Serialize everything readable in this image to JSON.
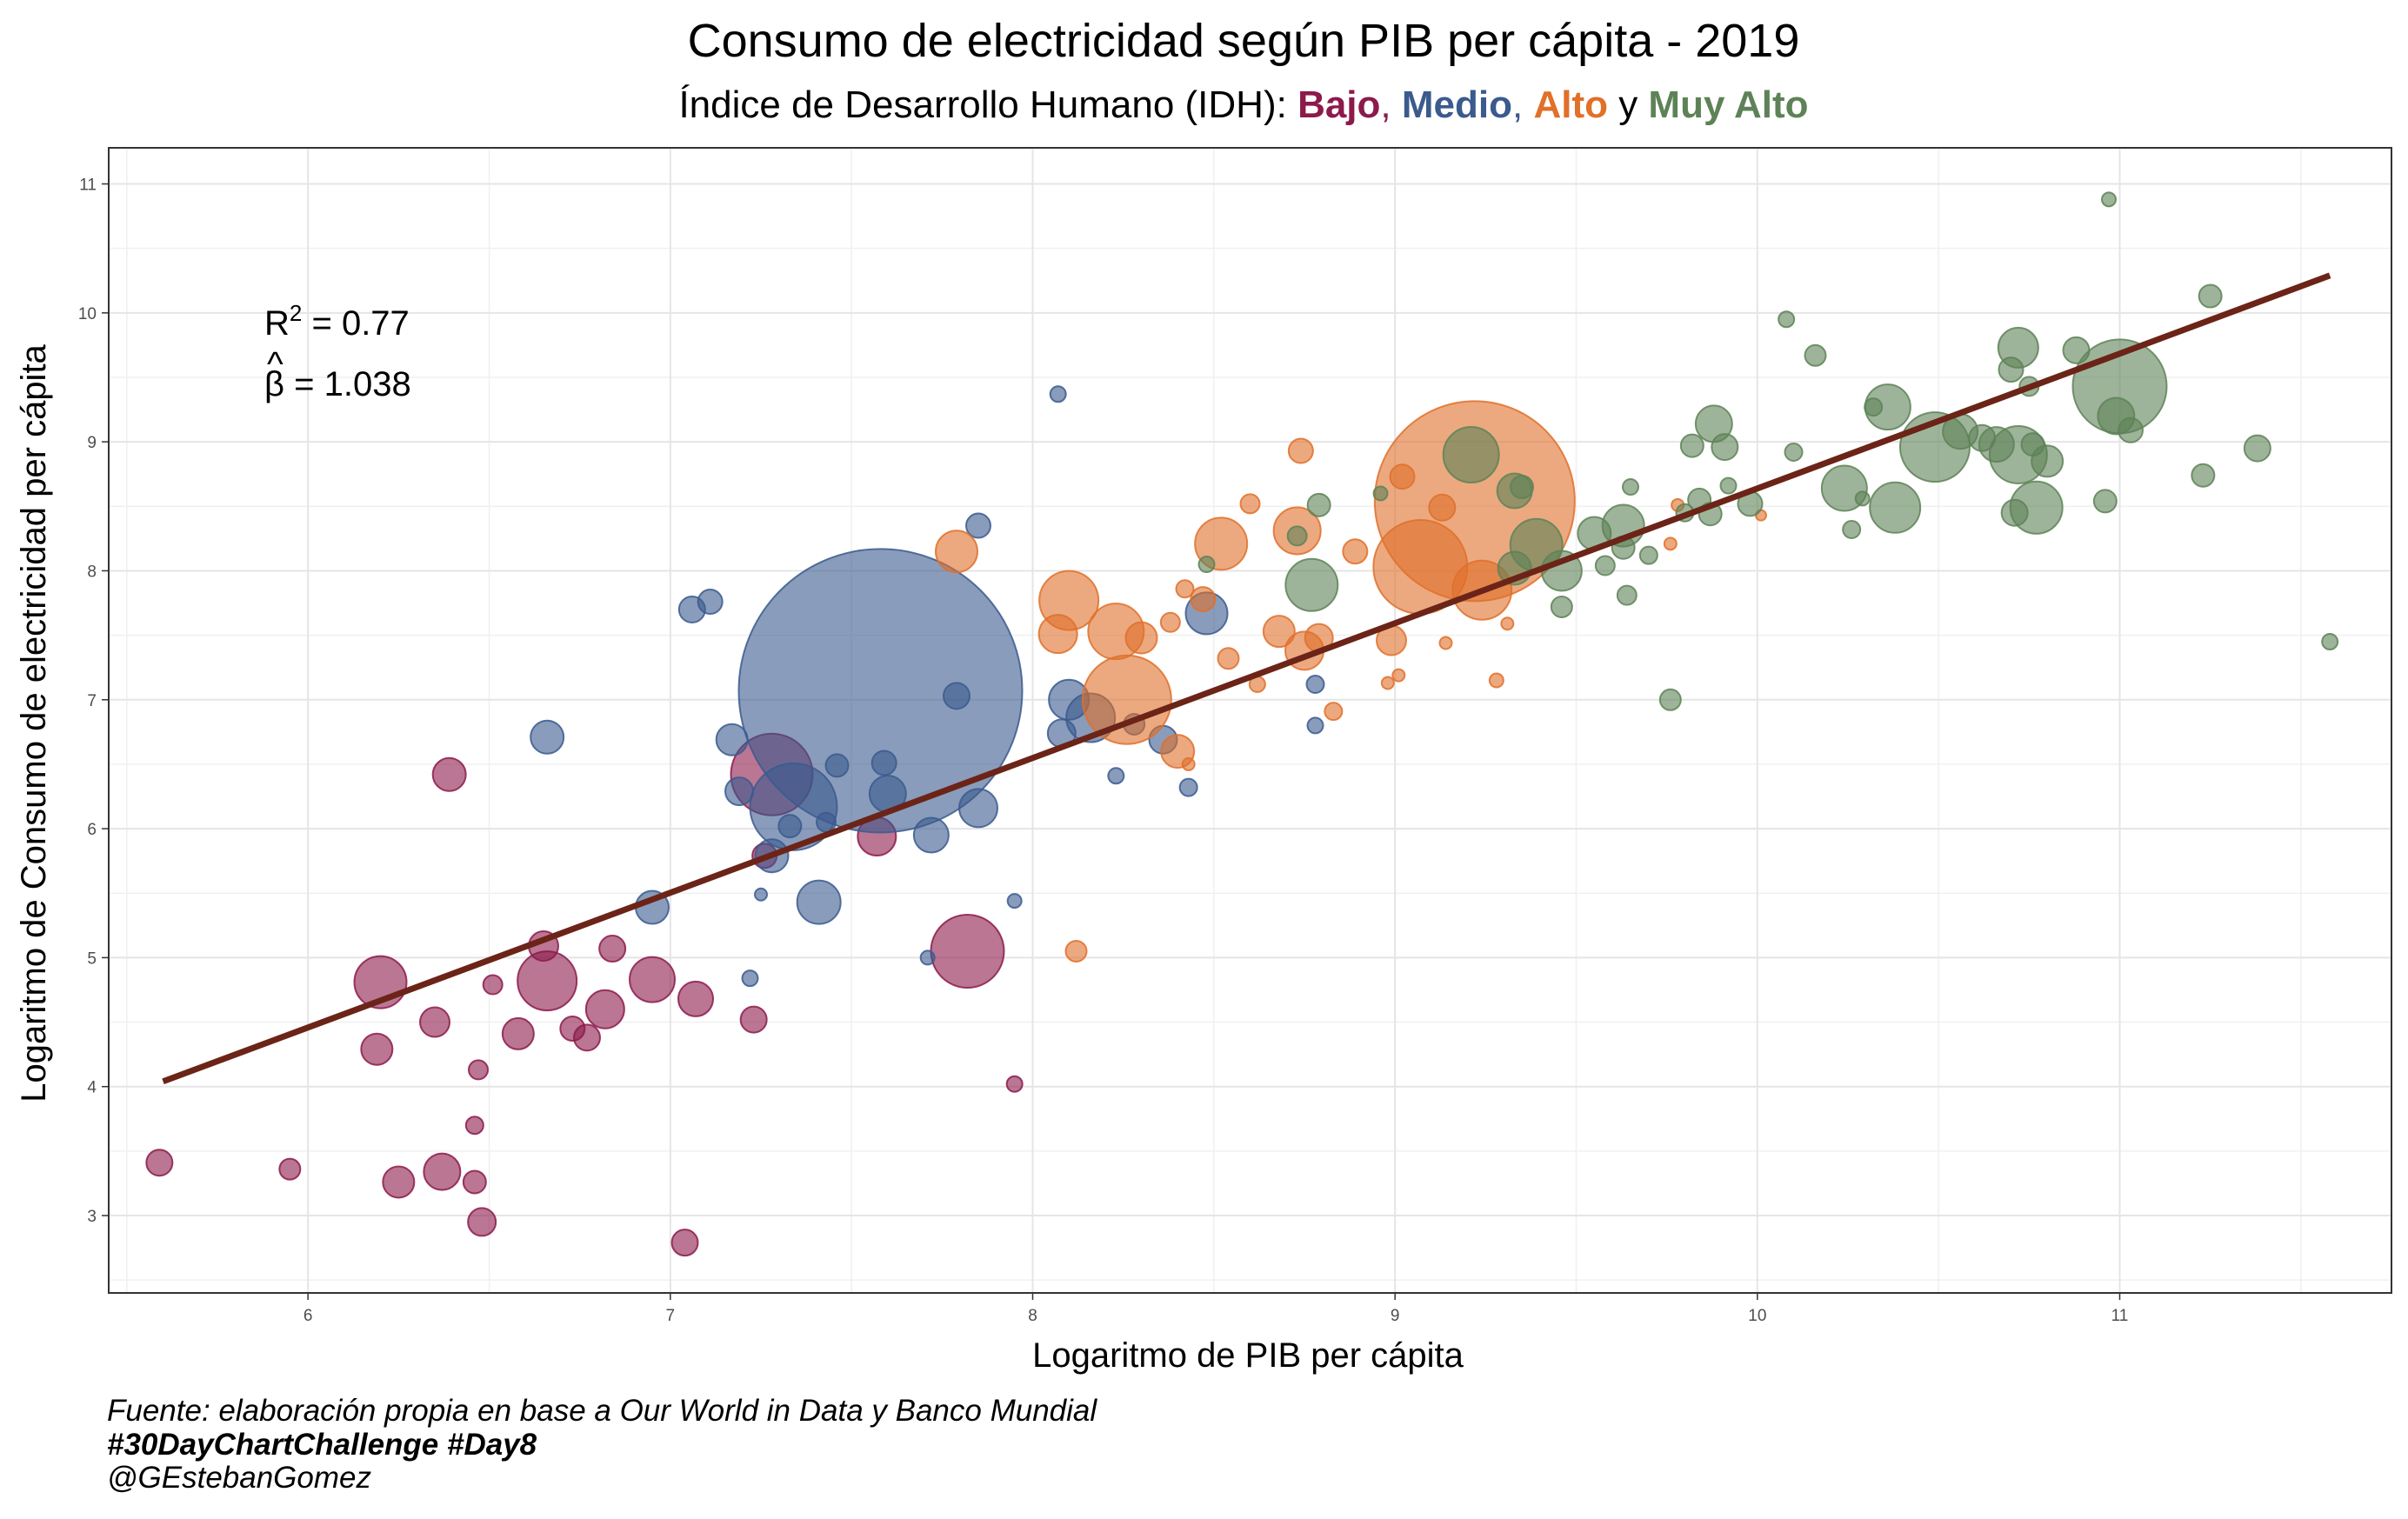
{
  "chart_data": {
    "type": "scatter",
    "title": "Consumo de electricidad según PIB per cápita - 2019",
    "subtitle": {
      "prefix": "Índice de Desarrollo Humano (IDH): ",
      "groups": [
        {
          "label": "Bajo",
          "color": "#8C1A4B"
        },
        {
          "label": "Medio",
          "color": "#3B5A8E"
        },
        {
          "label": "Alto",
          "color": "#E0702A"
        },
        {
          "label": "Muy Alto",
          "color": "#5E8257"
        }
      ],
      "sep1": ", ",
      "sep2": ", ",
      "sep3": " y "
    },
    "xlabel": "Logaritmo de PIB per cápita",
    "ylabel": "Logaritmo de Consumo de electricidad per cápita",
    "xlim": [
      5.45,
      11.75
    ],
    "ylim": [
      2.4,
      11.28
    ],
    "x_ticks": [
      6,
      7,
      8,
      9,
      10,
      11
    ],
    "y_ticks": [
      3,
      4,
      5,
      6,
      7,
      8,
      9,
      10,
      11
    ],
    "grid": true,
    "stats": {
      "r2_label": "R",
      "r2_sup": "2",
      "r2_value": " = 0.77",
      "beta_label": "β",
      "beta_hat": "^",
      "beta_value": " = 1.038"
    },
    "regression": {
      "x": [
        5.6,
        11.58
      ],
      "y": [
        4.04,
        10.29
      ],
      "color": "#6B2417"
    },
    "caption": {
      "line1": "Fuente: elaboración propia en base a Our World in Data y Banco Mundial",
      "line2": "#30DayChartChallenge #Day8",
      "line3": "@GEstebanGomez"
    },
    "series": [
      {
        "name": "Bajo",
        "color": "#8C1A4B",
        "points": [
          {
            "x": 5.59,
            "y": 3.41,
            "s": 15
          },
          {
            "x": 5.95,
            "y": 3.36,
            "s": 12
          },
          {
            "x": 6.19,
            "y": 4.29,
            "s": 18
          },
          {
            "x": 6.2,
            "y": 4.81,
            "s": 30
          },
          {
            "x": 6.25,
            "y": 3.26,
            "s": 18
          },
          {
            "x": 6.35,
            "y": 4.5,
            "s": 17
          },
          {
            "x": 6.37,
            "y": 3.34,
            "s": 21
          },
          {
            "x": 6.39,
            "y": 6.42,
            "s": 19
          },
          {
            "x": 6.46,
            "y": 3.26,
            "s": 13
          },
          {
            "x": 6.46,
            "y": 3.7,
            "s": 10
          },
          {
            "x": 6.47,
            "y": 4.13,
            "s": 11
          },
          {
            "x": 6.48,
            "y": 2.95,
            "s": 16
          },
          {
            "x": 6.51,
            "y": 4.79,
            "s": 11
          },
          {
            "x": 6.58,
            "y": 4.41,
            "s": 18
          },
          {
            "x": 6.65,
            "y": 5.09,
            "s": 17
          },
          {
            "x": 6.66,
            "y": 4.82,
            "s": 34
          },
          {
            "x": 6.73,
            "y": 4.45,
            "s": 14
          },
          {
            "x": 6.77,
            "y": 4.38,
            "s": 15
          },
          {
            "x": 6.82,
            "y": 4.6,
            "s": 22
          },
          {
            "x": 6.84,
            "y": 5.07,
            "s": 15
          },
          {
            "x": 6.95,
            "y": 4.83,
            "s": 26
          },
          {
            "x": 7.04,
            "y": 2.79,
            "s": 15
          },
          {
            "x": 7.07,
            "y": 4.68,
            "s": 20
          },
          {
            "x": 7.23,
            "y": 4.52,
            "s": 15
          },
          {
            "x": 7.26,
            "y": 5.79,
            "s": 14
          },
          {
            "x": 7.28,
            "y": 6.42,
            "s": 47
          },
          {
            "x": 7.57,
            "y": 5.94,
            "s": 22
          },
          {
            "x": 7.82,
            "y": 5.05,
            "s": 42
          },
          {
            "x": 7.95,
            "y": 4.02,
            "s": 9
          }
        ]
      },
      {
        "name": "Medio",
        "color": "#3B5A8E",
        "points": [
          {
            "x": 6.66,
            "y": 6.71,
            "s": 19
          },
          {
            "x": 6.95,
            "y": 5.39,
            "s": 19
          },
          {
            "x": 7.06,
            "y": 7.7,
            "s": 15
          },
          {
            "x": 7.11,
            "y": 7.76,
            "s": 14
          },
          {
            "x": 7.17,
            "y": 6.69,
            "s": 18
          },
          {
            "x": 7.19,
            "y": 6.29,
            "s": 16
          },
          {
            "x": 7.22,
            "y": 4.84,
            "s": 9
          },
          {
            "x": 7.25,
            "y": 5.49,
            "s": 7
          },
          {
            "x": 7.28,
            "y": 5.79,
            "s": 19
          },
          {
            "x": 7.33,
            "y": 6.02,
            "s": 13
          },
          {
            "x": 7.34,
            "y": 6.17,
            "s": 50
          },
          {
            "x": 7.41,
            "y": 5.43,
            "s": 25
          },
          {
            "x": 7.43,
            "y": 6.05,
            "s": 11
          },
          {
            "x": 7.46,
            "y": 6.49,
            "s": 13
          },
          {
            "x": 7.58,
            "y": 7.07,
            "s": 163
          },
          {
            "x": 7.59,
            "y": 6.51,
            "s": 14
          },
          {
            "x": 7.6,
            "y": 6.27,
            "s": 21
          },
          {
            "x": 7.71,
            "y": 5.0,
            "s": 8
          },
          {
            "x": 7.72,
            "y": 5.95,
            "s": 20
          },
          {
            "x": 7.79,
            "y": 7.03,
            "s": 15
          },
          {
            "x": 7.85,
            "y": 8.35,
            "s": 14
          },
          {
            "x": 7.85,
            "y": 6.16,
            "s": 22
          },
          {
            "x": 7.95,
            "y": 5.44,
            "s": 8
          },
          {
            "x": 8.07,
            "y": 9.37,
            "s": 9
          },
          {
            "x": 8.08,
            "y": 6.74,
            "s": 16
          },
          {
            "x": 8.1,
            "y": 7.0,
            "s": 23
          },
          {
            "x": 8.16,
            "y": 6.86,
            "s": 28
          },
          {
            "x": 8.23,
            "y": 6.41,
            "s": 9
          },
          {
            "x": 8.28,
            "y": 6.81,
            "s": 12
          },
          {
            "x": 8.36,
            "y": 6.69,
            "s": 16
          },
          {
            "x": 8.43,
            "y": 6.32,
            "s": 10
          },
          {
            "x": 8.48,
            "y": 7.67,
            "s": 24
          },
          {
            "x": 8.78,
            "y": 7.12,
            "s": 10
          },
          {
            "x": 8.78,
            "y": 6.8,
            "s": 9
          }
        ]
      },
      {
        "name": "Alto",
        "color": "#E0702A",
        "points": [
          {
            "x": 7.79,
            "y": 8.15,
            "s": 24
          },
          {
            "x": 8.07,
            "y": 7.51,
            "s": 22
          },
          {
            "x": 8.1,
            "y": 7.77,
            "s": 34
          },
          {
            "x": 8.12,
            "y": 5.05,
            "s": 12
          },
          {
            "x": 8.23,
            "y": 7.53,
            "s": 32
          },
          {
            "x": 8.26,
            "y": 7.0,
            "s": 51
          },
          {
            "x": 8.3,
            "y": 7.48,
            "s": 18
          },
          {
            "x": 8.38,
            "y": 7.6,
            "s": 11
          },
          {
            "x": 8.4,
            "y": 6.6,
            "s": 19
          },
          {
            "x": 8.42,
            "y": 7.86,
            "s": 10
          },
          {
            "x": 8.43,
            "y": 6.5,
            "s": 7
          },
          {
            "x": 8.47,
            "y": 7.78,
            "s": 14
          },
          {
            "x": 8.52,
            "y": 8.21,
            "s": 30
          },
          {
            "x": 8.54,
            "y": 7.32,
            "s": 12
          },
          {
            "x": 8.6,
            "y": 8.52,
            "s": 11
          },
          {
            "x": 8.62,
            "y": 7.12,
            "s": 9
          },
          {
            "x": 8.68,
            "y": 7.53,
            "s": 18
          },
          {
            "x": 8.73,
            "y": 8.31,
            "s": 27
          },
          {
            "x": 8.74,
            "y": 8.93,
            "s": 14
          },
          {
            "x": 8.75,
            "y": 7.38,
            "s": 22
          },
          {
            "x": 8.79,
            "y": 7.48,
            "s": 16
          },
          {
            "x": 8.83,
            "y": 6.91,
            "s": 10
          },
          {
            "x": 8.89,
            "y": 8.15,
            "s": 14
          },
          {
            "x": 8.98,
            "y": 7.13,
            "s": 7
          },
          {
            "x": 8.99,
            "y": 7.46,
            "s": 17
          },
          {
            "x": 9.01,
            "y": 7.19,
            "s": 7
          },
          {
            "x": 9.02,
            "y": 8.73,
            "s": 14
          },
          {
            "x": 9.07,
            "y": 8.03,
            "s": 54
          },
          {
            "x": 9.13,
            "y": 8.49,
            "s": 15
          },
          {
            "x": 9.14,
            "y": 7.44,
            "s": 7
          },
          {
            "x": 9.22,
            "y": 8.54,
            "s": 115
          },
          {
            "x": 9.24,
            "y": 7.85,
            "s": 34
          },
          {
            "x": 9.28,
            "y": 7.15,
            "s": 8
          },
          {
            "x": 9.31,
            "y": 7.59,
            "s": 7
          },
          {
            "x": 9.76,
            "y": 8.21,
            "s": 7
          },
          {
            "x": 9.78,
            "y": 8.51,
            "s": 7
          },
          {
            "x": 10.01,
            "y": 8.43,
            "s": 6
          }
        ]
      },
      {
        "name": "Muy Alto",
        "color": "#5E8257",
        "points": [
          {
            "x": 8.48,
            "y": 8.05,
            "s": 9
          },
          {
            "x": 8.73,
            "y": 8.27,
            "s": 11
          },
          {
            "x": 8.77,
            "y": 7.89,
            "s": 30
          },
          {
            "x": 8.79,
            "y": 8.51,
            "s": 13
          },
          {
            "x": 8.96,
            "y": 8.6,
            "s": 8
          },
          {
            "x": 9.21,
            "y": 8.9,
            "s": 32
          },
          {
            "x": 9.33,
            "y": 8.62,
            "s": 20
          },
          {
            "x": 9.33,
            "y": 8.02,
            "s": 19
          },
          {
            "x": 9.35,
            "y": 8.65,
            "s": 13
          },
          {
            "x": 9.39,
            "y": 8.2,
            "s": 30
          },
          {
            "x": 9.46,
            "y": 8.0,
            "s": 23
          },
          {
            "x": 9.46,
            "y": 7.72,
            "s": 12
          },
          {
            "x": 9.55,
            "y": 8.29,
            "s": 19
          },
          {
            "x": 9.58,
            "y": 8.04,
            "s": 11
          },
          {
            "x": 9.63,
            "y": 8.35,
            "s": 24
          },
          {
            "x": 9.63,
            "y": 8.18,
            "s": 13
          },
          {
            "x": 9.64,
            "y": 7.81,
            "s": 11
          },
          {
            "x": 9.65,
            "y": 8.65,
            "s": 9
          },
          {
            "x": 9.7,
            "y": 8.12,
            "s": 10
          },
          {
            "x": 9.76,
            "y": 7.0,
            "s": 12
          },
          {
            "x": 9.8,
            "y": 8.45,
            "s": 10
          },
          {
            "x": 9.82,
            "y": 8.97,
            "s": 13
          },
          {
            "x": 9.84,
            "y": 8.55,
            "s": 13
          },
          {
            "x": 9.87,
            "y": 8.44,
            "s": 13
          },
          {
            "x": 9.88,
            "y": 9.14,
            "s": 21
          },
          {
            "x": 9.91,
            "y": 8.96,
            "s": 15
          },
          {
            "x": 9.92,
            "y": 8.66,
            "s": 9
          },
          {
            "x": 9.98,
            "y": 8.52,
            "s": 14
          },
          {
            "x": 10.08,
            "y": 9.95,
            "s": 9
          },
          {
            "x": 10.1,
            "y": 8.92,
            "s": 10
          },
          {
            "x": 10.16,
            "y": 9.67,
            "s": 12
          },
          {
            "x": 10.24,
            "y": 8.64,
            "s": 26
          },
          {
            "x": 10.26,
            "y": 8.32,
            "s": 10
          },
          {
            "x": 10.29,
            "y": 8.56,
            "s": 8
          },
          {
            "x": 10.32,
            "y": 9.27,
            "s": 10
          },
          {
            "x": 10.36,
            "y": 9.27,
            "s": 26
          },
          {
            "x": 10.38,
            "y": 8.49,
            "s": 29
          },
          {
            "x": 10.49,
            "y": 8.96,
            "s": 40
          },
          {
            "x": 10.56,
            "y": 9.08,
            "s": 20
          },
          {
            "x": 10.62,
            "y": 9.03,
            "s": 15
          },
          {
            "x": 10.66,
            "y": 8.98,
            "s": 20
          },
          {
            "x": 10.7,
            "y": 9.56,
            "s": 14
          },
          {
            "x": 10.71,
            "y": 8.45,
            "s": 15
          },
          {
            "x": 10.72,
            "y": 9.73,
            "s": 23
          },
          {
            "x": 10.72,
            "y": 8.9,
            "s": 33
          },
          {
            "x": 10.75,
            "y": 9.43,
            "s": 11
          },
          {
            "x": 10.76,
            "y": 8.98,
            "s": 13
          },
          {
            "x": 10.77,
            "y": 8.49,
            "s": 30
          },
          {
            "x": 10.8,
            "y": 8.85,
            "s": 18
          },
          {
            "x": 10.88,
            "y": 9.71,
            "s": 15
          },
          {
            "x": 10.96,
            "y": 8.54,
            "s": 13
          },
          {
            "x": 10.97,
            "y": 10.88,
            "s": 8
          },
          {
            "x": 11.0,
            "y": 9.43,
            "s": 54
          },
          {
            "x": 10.99,
            "y": 9.2,
            "s": 21
          },
          {
            "x": 11.03,
            "y": 9.09,
            "s": 14
          },
          {
            "x": 11.23,
            "y": 8.74,
            "s": 13
          },
          {
            "x": 11.25,
            "y": 10.13,
            "s": 13
          },
          {
            "x": 11.38,
            "y": 8.95,
            "s": 15
          },
          {
            "x": 11.58,
            "y": 7.45,
            "s": 9
          }
        ]
      }
    ]
  }
}
